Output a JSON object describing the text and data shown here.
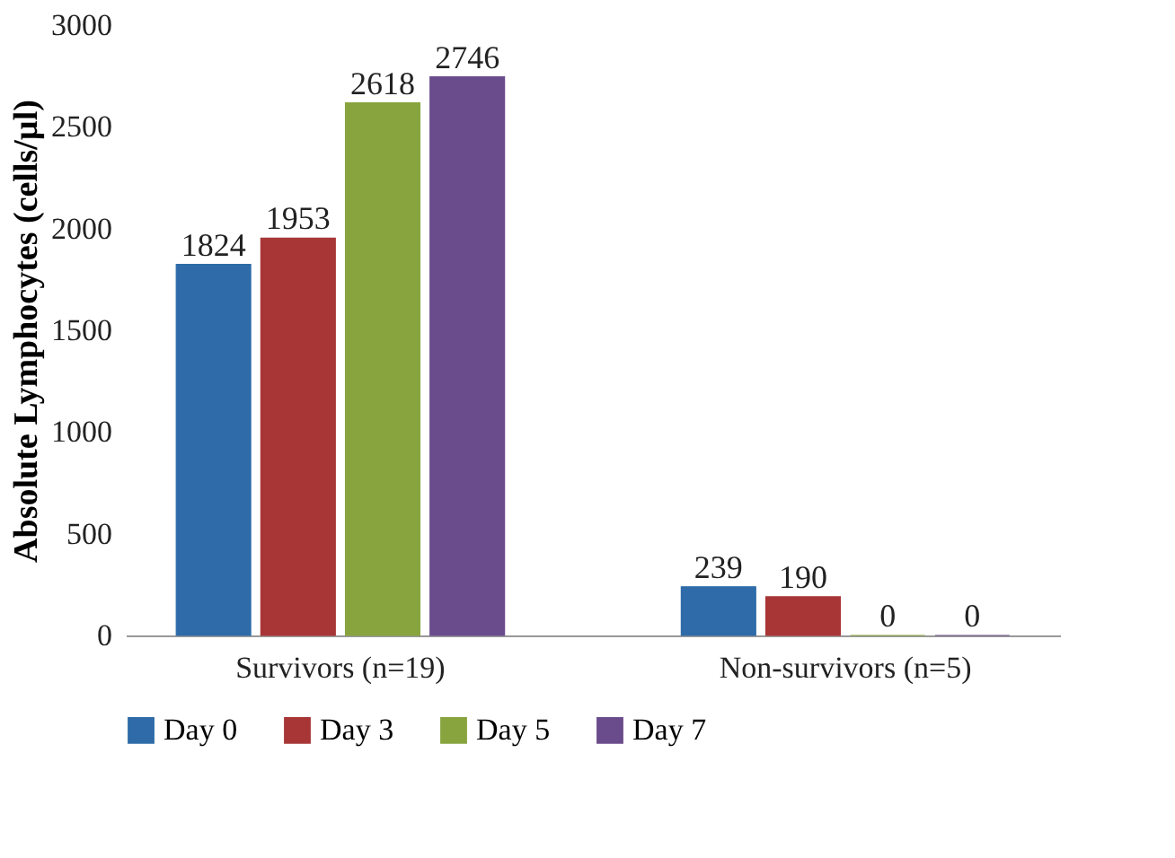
{
  "chart_data": {
    "type": "bar",
    "ylabel": "Absolute Lymphocytes (cells/µl)",
    "categories": [
      "Survivors (n=19)",
      "Non-survivors (n=5)"
    ],
    "series": [
      {
        "name": "Day 0",
        "color": "#2e6ba8",
        "values": [
          1824,
          239
        ]
      },
      {
        "name": "Day 3",
        "color": "#a83636",
        "values": [
          1953,
          190
        ]
      },
      {
        "name": "Day 5",
        "color": "#88a43e",
        "values": [
          2618,
          0
        ]
      },
      {
        "name": "Day 7",
        "color": "#6a4c8c",
        "values": [
          2746,
          0
        ]
      }
    ],
    "ylim": [
      0,
      3000
    ],
    "yticks": [
      0,
      500,
      1000,
      1500,
      2000,
      2500,
      3000
    ],
    "data_labels": true,
    "grid": false,
    "legend": "bottom"
  }
}
